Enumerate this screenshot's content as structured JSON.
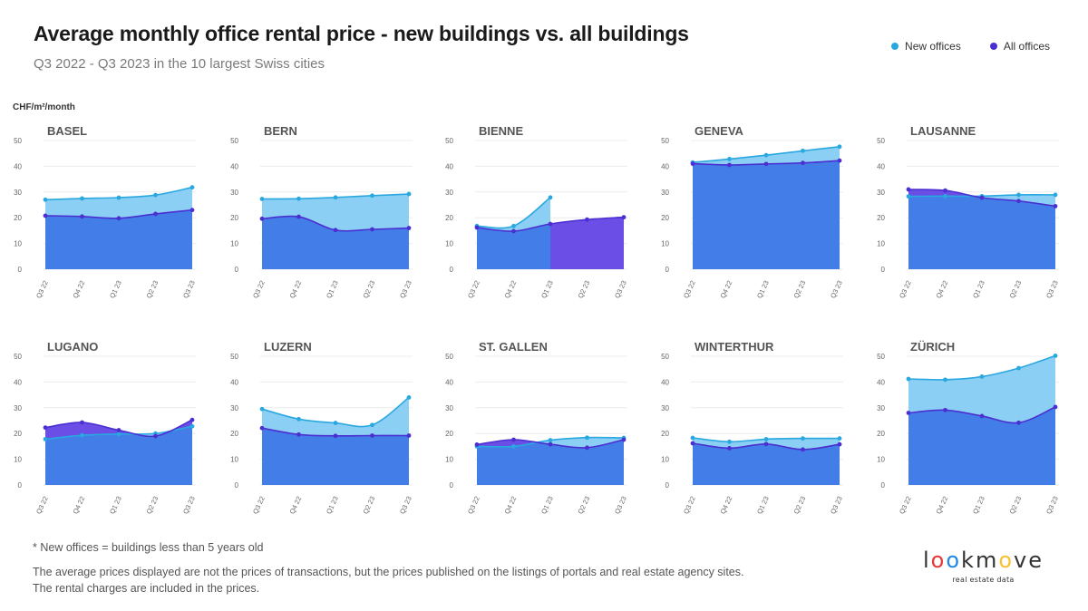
{
  "header": {
    "title": "Average monthly office rental price - new buildings vs. all buildings",
    "subtitle": "Q3 2022 - Q3 2023 in the 10 largest Swiss cities"
  },
  "legend": {
    "new_label": "New offices",
    "all_label": "All offices"
  },
  "unit_label": "CHF/m²/month",
  "colors": {
    "new_line": "#29a8e0",
    "new_fill": "#8ccff4",
    "all_line": "#4b2fd1",
    "all_fill": "#427de8",
    "all_above_fill": "#6a4ee6",
    "grid": "#ececec",
    "axis_text": "#666666"
  },
  "chart_data": [
    {
      "type": "area",
      "title": "BASEL",
      "categories": [
        "Q3 22",
        "Q4 22",
        "Q1 23",
        "Q2 23",
        "Q3 23"
      ],
      "ylim": [
        0,
        50
      ],
      "yticks": [
        0,
        10,
        20,
        30,
        40,
        50
      ],
      "series": [
        {
          "name": "New offices",
          "values": [
            27,
            27.5,
            27.8,
            28.8,
            31.8
          ]
        },
        {
          "name": "All offices",
          "values": [
            20.8,
            20.5,
            19.8,
            21.5,
            23
          ]
        }
      ]
    },
    {
      "type": "area",
      "title": "BERN",
      "categories": [
        "Q3 22",
        "Q4 22",
        "Q1 23",
        "Q2 23",
        "Q3 23"
      ],
      "ylim": [
        0,
        50
      ],
      "yticks": [
        0,
        10,
        20,
        30,
        40,
        50
      ],
      "series": [
        {
          "name": "New offices",
          "values": [
            27.3,
            27.4,
            27.9,
            28.6,
            29.2
          ]
        },
        {
          "name": "All offices",
          "values": [
            19.6,
            20.4,
            15.2,
            15.5,
            16
          ]
        }
      ]
    },
    {
      "type": "area",
      "title": "BIENNE",
      "categories": [
        "Q3 22",
        "Q4 22",
        "Q1 23",
        "Q2 23",
        "Q3 23"
      ],
      "ylim": [
        0,
        50
      ],
      "yticks": [
        0,
        10,
        20,
        30,
        40,
        50
      ],
      "series": [
        {
          "name": "New offices",
          "values": [
            16.8,
            16.8,
            27.9,
            null,
            null
          ]
        },
        {
          "name": "All offices",
          "values": [
            16.2,
            14.8,
            17.6,
            19.3,
            20.2
          ]
        }
      ]
    },
    {
      "type": "area",
      "title": "GENEVA",
      "categories": [
        "Q3 22",
        "Q4 22",
        "Q1 23",
        "Q2 23",
        "Q3 23"
      ],
      "ylim": [
        0,
        50
      ],
      "yticks": [
        0,
        10,
        20,
        30,
        40,
        50
      ],
      "series": [
        {
          "name": "New offices",
          "values": [
            41.5,
            42.8,
            44.3,
            46,
            47.6
          ]
        },
        {
          "name": "All offices",
          "values": [
            41,
            40.5,
            40.9,
            41.3,
            42.2
          ]
        }
      ]
    },
    {
      "type": "area",
      "title": "LAUSANNE",
      "categories": [
        "Q3 22",
        "Q4 22",
        "Q1 23",
        "Q2 23",
        "Q3 23"
      ],
      "ylim": [
        0,
        50
      ],
      "yticks": [
        0,
        10,
        20,
        30,
        40,
        50
      ],
      "series": [
        {
          "name": "New offices",
          "values": [
            28.3,
            28.4,
            28.4,
            28.9,
            28.9
          ]
        },
        {
          "name": "All offices",
          "values": [
            31,
            30.6,
            27.8,
            26.5,
            24.5
          ]
        }
      ]
    },
    {
      "type": "area",
      "title": "LUGANO",
      "categories": [
        "Q3 22",
        "Q4 22",
        "Q1 23",
        "Q2 23",
        "Q3 23"
      ],
      "ylim": [
        0,
        50
      ],
      "yticks": [
        0,
        10,
        20,
        30,
        40,
        50
      ],
      "series": [
        {
          "name": "New offices",
          "values": [
            17.8,
            19.3,
            19.8,
            20,
            22.8
          ]
        },
        {
          "name": "All offices",
          "values": [
            22.3,
            24.3,
            21.3,
            19,
            25.3
          ]
        }
      ]
    },
    {
      "type": "area",
      "title": "LUZERN",
      "categories": [
        "Q3 22",
        "Q4 22",
        "Q1 23",
        "Q2 23",
        "Q3 23"
      ],
      "ylim": [
        0,
        50
      ],
      "yticks": [
        0,
        10,
        20,
        30,
        40,
        50
      ],
      "series": [
        {
          "name": "New offices",
          "values": [
            29.5,
            25.6,
            24.1,
            23.3,
            34
          ]
        },
        {
          "name": "All offices",
          "values": [
            22.1,
            19.6,
            19.1,
            19.2,
            19.2
          ]
        }
      ]
    },
    {
      "type": "area",
      "title": "ST. GALLEN",
      "categories": [
        "Q3 22",
        "Q4 22",
        "Q1 23",
        "Q2 23",
        "Q3 23"
      ],
      "ylim": [
        0,
        50
      ],
      "yticks": [
        0,
        10,
        20,
        30,
        40,
        50
      ],
      "series": [
        {
          "name": "New offices",
          "values": [
            15,
            15,
            17.4,
            18.4,
            18.3
          ]
        },
        {
          "name": "All offices",
          "values": [
            15.7,
            17.6,
            15.8,
            14.5,
            17.6
          ]
        }
      ]
    },
    {
      "type": "area",
      "title": "WINTERTHUR",
      "categories": [
        "Q3 22",
        "Q4 22",
        "Q1 23",
        "Q2 23",
        "Q3 23"
      ],
      "ylim": [
        0,
        50
      ],
      "yticks": [
        0,
        10,
        20,
        30,
        40,
        50
      ],
      "series": [
        {
          "name": "New offices",
          "values": [
            18.3,
            16.8,
            17.8,
            18.1,
            18.1
          ]
        },
        {
          "name": "All offices",
          "values": [
            16.2,
            14.3,
            15.9,
            13.8,
            15.8
          ]
        }
      ]
    },
    {
      "type": "area",
      "title": "ZÜRICH",
      "categories": [
        "Q3 22",
        "Q4 22",
        "Q1 23",
        "Q2 23",
        "Q3 23"
      ],
      "ylim": [
        0,
        50
      ],
      "yticks": [
        0,
        10,
        20,
        30,
        40,
        50
      ],
      "series": [
        {
          "name": "New offices",
          "values": [
            41.2,
            40.9,
            42.1,
            45.4,
            50.2
          ]
        },
        {
          "name": "All offices",
          "values": [
            28,
            29.1,
            26.8,
            24.2,
            30.3
          ]
        }
      ]
    }
  ],
  "footer": {
    "footnote": "* New offices = buildings less than 5 years old",
    "note_1": "The average prices displayed are not the prices of transactions, but the prices published on the listings of portals and real estate agency sites.",
    "note_2": "The rental charges are included in the prices."
  },
  "logo": {
    "letters": [
      "l",
      "o",
      "o",
      "k",
      "m",
      "o",
      "v",
      "e"
    ],
    "letter_colors": [
      "#333333",
      "#e53935",
      "#1e88e5",
      "#333333",
      "#333333",
      "#fbc02d",
      "#333333",
      "#333333"
    ],
    "tagline": "real estate data"
  }
}
